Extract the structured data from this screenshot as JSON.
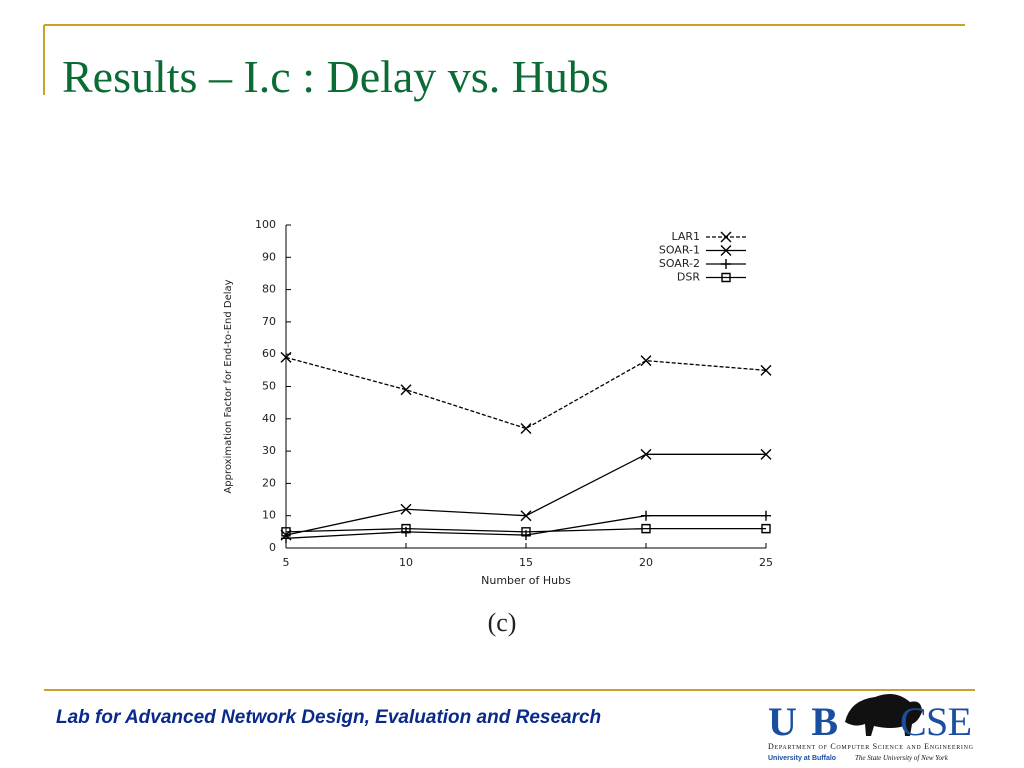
{
  "slide_title": "Results – I.c : Delay vs. Hubs",
  "chart_data": {
    "type": "line",
    "x_label": "Number of Hubs",
    "y_label": "Approximation Factor for End-to-End Delay",
    "caption": "(c)",
    "x": [
      5,
      10,
      15,
      20,
      25
    ],
    "series": [
      {
        "name": "LAR1",
        "color": "#000000",
        "dash": true,
        "marker": "x",
        "values": [
          59,
          49,
          37,
          58,
          55
        ]
      },
      {
        "name": "SOAR-1",
        "color": "#000000",
        "dash": false,
        "marker": "x",
        "values": [
          4,
          12,
          10,
          29,
          29
        ]
      },
      {
        "name": "SOAR-2",
        "color": "#000000",
        "dash": false,
        "marker": "plus",
        "values": [
          3,
          5,
          4,
          10,
          10
        ]
      },
      {
        "name": "DSR",
        "color": "#000000",
        "dash": false,
        "marker": "square",
        "values": [
          5,
          6,
          5,
          6,
          6
        ]
      }
    ],
    "xlim": [
      5,
      25
    ],
    "ylim": [
      0,
      100
    ],
    "xticks": [
      5,
      10,
      15,
      20,
      25
    ],
    "yticks": [
      0,
      10,
      20,
      30,
      40,
      50,
      60,
      70,
      80,
      90,
      100
    ],
    "legend": "top-right"
  },
  "footer": {
    "text": "Lab for Advanced Network Design, Evaluation and Research"
  },
  "logo": {
    "ub": "UB",
    "cse": "CSE",
    "department": "Department of Computer Science and Engineering",
    "university": "University at Buffalo",
    "state": "The State University of New York"
  }
}
